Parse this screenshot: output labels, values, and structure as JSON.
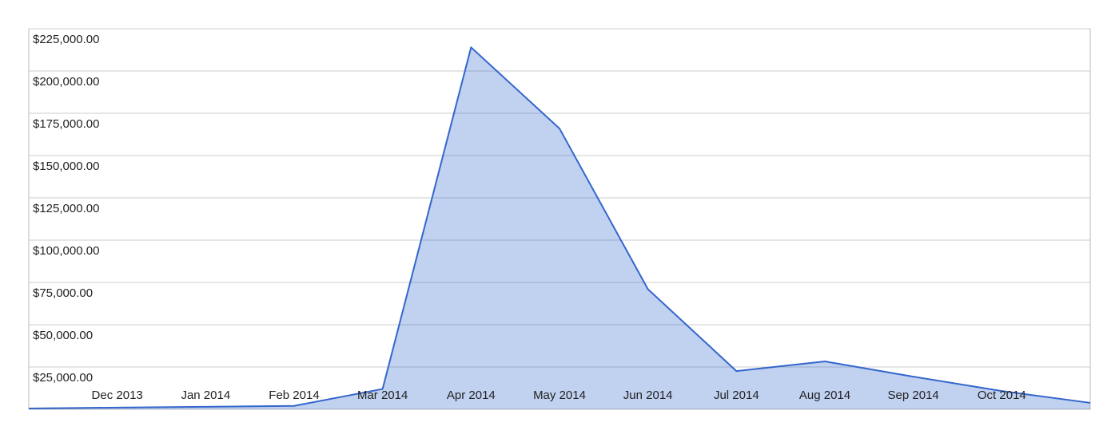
{
  "chart_data": {
    "type": "area",
    "categories": [
      null,
      "Dec 2013",
      "Jan 2014",
      "Feb 2014",
      "Mar 2014",
      "Apr 2014",
      "May 2014",
      "Jun 2014",
      "Jul 2014",
      "Aug 2014",
      "Sep 2014",
      "Oct 2014",
      null
    ],
    "series": [
      {
        "color": "#3366cc",
        "values": [
          500,
          1000,
          1500,
          2000,
          12000,
          214000,
          166000,
          71000,
          22600,
          28300,
          19300,
          10800,
          3800
        ]
      }
    ],
    "ylim": [
      0,
      225000
    ],
    "yticks": [
      {
        "value": 25000,
        "label": "$25,000.00"
      },
      {
        "value": 50000,
        "label": "$50,000.00"
      },
      {
        "value": 75000,
        "label": "$75,000.00"
      },
      {
        "value": 100000,
        "label": "$100,000.00"
      },
      {
        "value": 125000,
        "label": "$125,000.00"
      },
      {
        "value": 150000,
        "label": "$150,000.00"
      },
      {
        "value": 175000,
        "label": "$175,000.00"
      },
      {
        "value": 200000,
        "label": "$200,000.00"
      },
      {
        "value": 225000,
        "label": "$225,000.00"
      }
    ],
    "grid": true
  }
}
